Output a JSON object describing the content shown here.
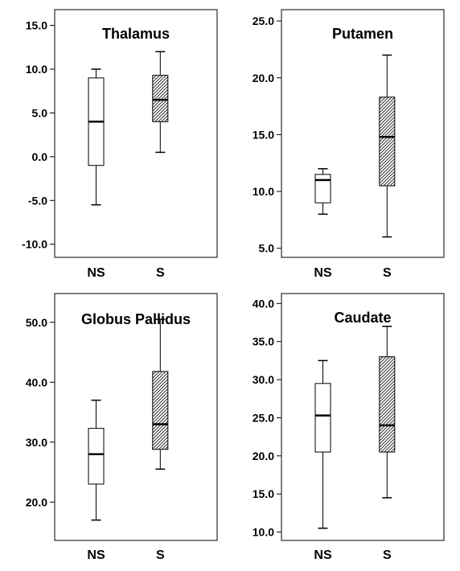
{
  "chart_data": [
    {
      "type": "box",
      "title": "Thalamus",
      "categories": [
        "NS",
        "S"
      ],
      "ylim": [
        -11.5,
        16.8
      ],
      "yticks": [
        "15.0",
        "10.0",
        "5.0",
        "0.0",
        "-5.0",
        "-10.0"
      ],
      "ytick_values": [
        15,
        10,
        5,
        0,
        -5,
        -10
      ],
      "boxes": [
        {
          "category": "NS",
          "whisker_low": -5.5,
          "q1": -1.0,
          "median": 4.0,
          "q3": 9.0,
          "whisker_high": 10.0,
          "fill": "plain"
        },
        {
          "category": "S",
          "whisker_low": 0.5,
          "q1": 4.0,
          "median": 6.5,
          "q3": 9.3,
          "whisker_high": 12.0,
          "fill": "hatched"
        }
      ]
    },
    {
      "type": "box",
      "title": "Putamen",
      "categories": [
        "NS",
        "S"
      ],
      "ylim": [
        4.2,
        26.0
      ],
      "yticks": [
        "25.0",
        "20.0",
        "15.0",
        "10.0",
        "5.0"
      ],
      "ytick_values": [
        25,
        20,
        15,
        10,
        5
      ],
      "boxes": [
        {
          "category": "NS",
          "whisker_low": 8.0,
          "q1": 9.0,
          "median": 11.0,
          "q3": 11.5,
          "whisker_high": 12.0,
          "fill": "plain"
        },
        {
          "category": "S",
          "whisker_low": 6.0,
          "q1": 10.5,
          "median": 14.8,
          "q3": 18.3,
          "whisker_high": 22.0,
          "fill": "hatched"
        }
      ]
    },
    {
      "type": "box",
      "title": "Globus Pallidus",
      "categories": [
        "NS",
        "S"
      ],
      "ylim": [
        13.6,
        54.8
      ],
      "yticks": [
        "50.0",
        "40.0",
        "30.0",
        "20.0"
      ],
      "ytick_values": [
        50,
        40,
        30,
        20
      ],
      "boxes": [
        {
          "category": "NS",
          "whisker_low": 17.0,
          "q1": 23.0,
          "median": 28.0,
          "q3": 32.3,
          "whisker_high": 37.0,
          "fill": "plain"
        },
        {
          "category": "S",
          "whisker_low": 25.5,
          "q1": 28.8,
          "median": 33.0,
          "q3": 41.8,
          "whisker_high": 50.5,
          "fill": "hatched"
        }
      ]
    },
    {
      "type": "box",
      "title": "Caudate",
      "categories": [
        "NS",
        "S"
      ],
      "ylim": [
        8.9,
        41.3
      ],
      "yticks": [
        "40.0",
        "35.0",
        "30.0",
        "25.0",
        "20.0",
        "15.0",
        "10.0"
      ],
      "ytick_values": [
        40,
        35,
        30,
        25,
        20,
        15,
        10
      ],
      "boxes": [
        {
          "category": "NS",
          "whisker_low": 10.5,
          "q1": 20.5,
          "median": 25.3,
          "q3": 29.5,
          "whisker_high": 32.5,
          "fill": "plain"
        },
        {
          "category": "S",
          "whisker_low": 14.5,
          "q1": 20.5,
          "median": 24.0,
          "q3": 33.0,
          "whisker_high": 37.0,
          "fill": "hatched"
        }
      ]
    }
  ]
}
